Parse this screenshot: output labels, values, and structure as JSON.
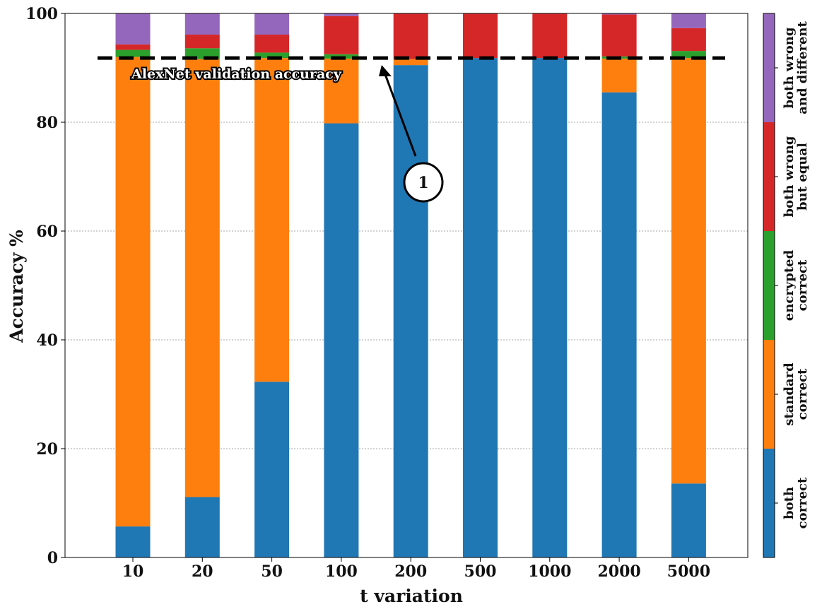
{
  "chart_data": {
    "type": "bar",
    "stacked": true,
    "xlabel": "t variation",
    "ylabel": "Accuracy %",
    "ylim": [
      0,
      100
    ],
    "yticks": [
      "0",
      "20",
      "40",
      "60",
      "80",
      "100"
    ],
    "grid": true,
    "categories": [
      "10",
      "20",
      "50",
      "100",
      "200",
      "500",
      "1000",
      "2000",
      "5000"
    ],
    "series": [
      {
        "name": "both correct",
        "color": "#1f77b4",
        "values": [
          5.7,
          11.1,
          32.3,
          79.8,
          90.5,
          91.8,
          91.8,
          85.5,
          13.6
        ]
      },
      {
        "name": "standard correct",
        "color": "#ff7f0e",
        "values": [
          86.3,
          80.5,
          59.5,
          11.9,
          1.1,
          0.0,
          0.0,
          6.2,
          78.2
        ]
      },
      {
        "name": "encrypted correct",
        "color": "#2ca02c",
        "values": [
          1.3,
          2.0,
          1.0,
          0.8,
          0.0,
          0.0,
          0.0,
          0.4,
          1.3
        ]
      },
      {
        "name": "both wrong but equal",
        "color": "#d62728",
        "values": [
          1.0,
          2.5,
          3.3,
          7.0,
          8.4,
          8.2,
          8.2,
          7.7,
          4.2
        ]
      },
      {
        "name": "both wrong and different",
        "color": "#9467bd",
        "values": [
          5.7,
          3.9,
          3.9,
          0.5,
          0.0,
          0.0,
          0.0,
          0.2,
          2.7
        ]
      }
    ],
    "reference_line": {
      "value": 91.8,
      "label": "AlexNet validation accuracy",
      "style": "dashed",
      "color": "#000000"
    },
    "annotation": {
      "label": "1"
    },
    "legend": {
      "placement": "right colorbar",
      "entries": [
        {
          "lines": [
            "both",
            "correct"
          ],
          "color": "#1f77b4"
        },
        {
          "lines": [
            "standard",
            "correct"
          ],
          "color": "#ff7f0e"
        },
        {
          "lines": [
            "encrypted",
            "correct"
          ],
          "color": "#2ca02c"
        },
        {
          "lines": [
            "both wrong",
            "but equal"
          ],
          "color": "#d62728"
        },
        {
          "lines": [
            "both wrong",
            "and different"
          ],
          "color": "#9467bd"
        }
      ]
    }
  }
}
